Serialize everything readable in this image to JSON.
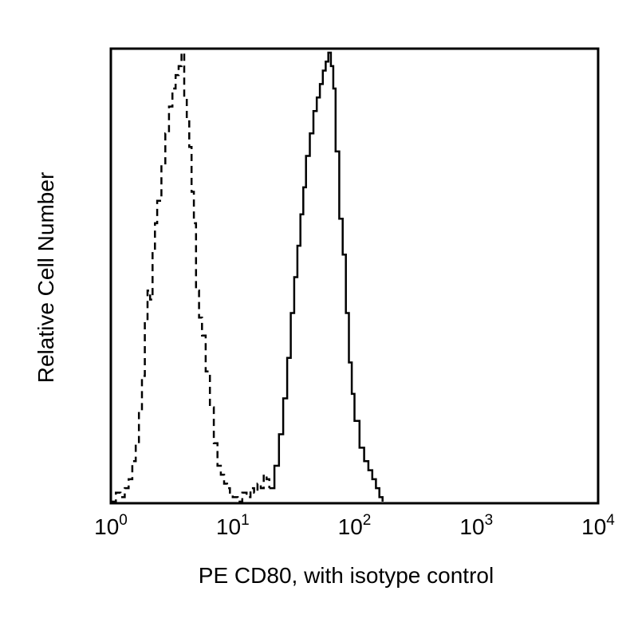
{
  "chart_data": {
    "type": "line",
    "title": "",
    "xlabel": "PE CD80, with isotype control",
    "ylabel": "Relative Cell Number",
    "x_scale": "log",
    "xlim": [
      1,
      10000
    ],
    "ylim": [
      0,
      100
    ],
    "grid": false,
    "legend": "none",
    "x_ticks": [
      {
        "value": 1,
        "base": "10",
        "exp": "0"
      },
      {
        "value": 10,
        "base": "10",
        "exp": "1"
      },
      {
        "value": 100,
        "base": "10",
        "exp": "2"
      },
      {
        "value": 1000,
        "base": "10",
        "exp": "3"
      },
      {
        "value": 10000,
        "base": "10",
        "exp": "4"
      }
    ],
    "series": [
      {
        "style": "dashed",
        "color": "#000000",
        "x": [
          1.0,
          1.1,
          1.2,
          1.3,
          1.4,
          1.5,
          1.6,
          1.7,
          1.8,
          1.9,
          2.0,
          2.1,
          2.2,
          2.3,
          2.4,
          2.6,
          2.8,
          3.0,
          3.2,
          3.4,
          3.6,
          3.8,
          4.0,
          4.2,
          4.4,
          4.6,
          4.8,
          5.0,
          5.3,
          5.6,
          6.0,
          6.5,
          7.0,
          7.5,
          8.0,
          8.5,
          9.0,
          9.5,
          10,
          11,
          12,
          13,
          14,
          15,
          16,
          17,
          18,
          19,
          20
        ],
        "y": [
          0,
          2,
          1,
          3,
          5,
          9,
          13,
          20,
          28,
          40,
          47,
          45,
          56,
          62,
          67,
          75,
          82,
          88,
          92,
          95,
          97,
          100,
          90,
          85,
          79,
          69,
          62,
          47,
          41,
          37,
          29,
          21,
          13,
          8,
          6,
          4,
          3,
          2,
          1,
          0,
          2,
          1,
          3,
          2,
          4,
          3,
          6,
          5,
          3
        ]
      },
      {
        "style": "solid",
        "color": "#000000",
        "x": [
          20,
          22,
          24,
          26,
          28,
          30,
          32,
          34,
          36,
          38,
          40,
          43,
          46,
          49,
          52,
          55,
          58,
          61,
          64,
          67,
          70,
          75,
          80,
          85,
          90,
          95,
          100,
          110,
          120,
          130,
          140,
          150,
          160,
          170
        ],
        "y": [
          3,
          8,
          15,
          23,
          32,
          42,
          50,
          57,
          64,
          70,
          77,
          82,
          87,
          90,
          93,
          96,
          98,
          100,
          97,
          92,
          78,
          63,
          55,
          42,
          31,
          24,
          18,
          12,
          9,
          7,
          5,
          3,
          1,
          0
        ]
      }
    ]
  }
}
